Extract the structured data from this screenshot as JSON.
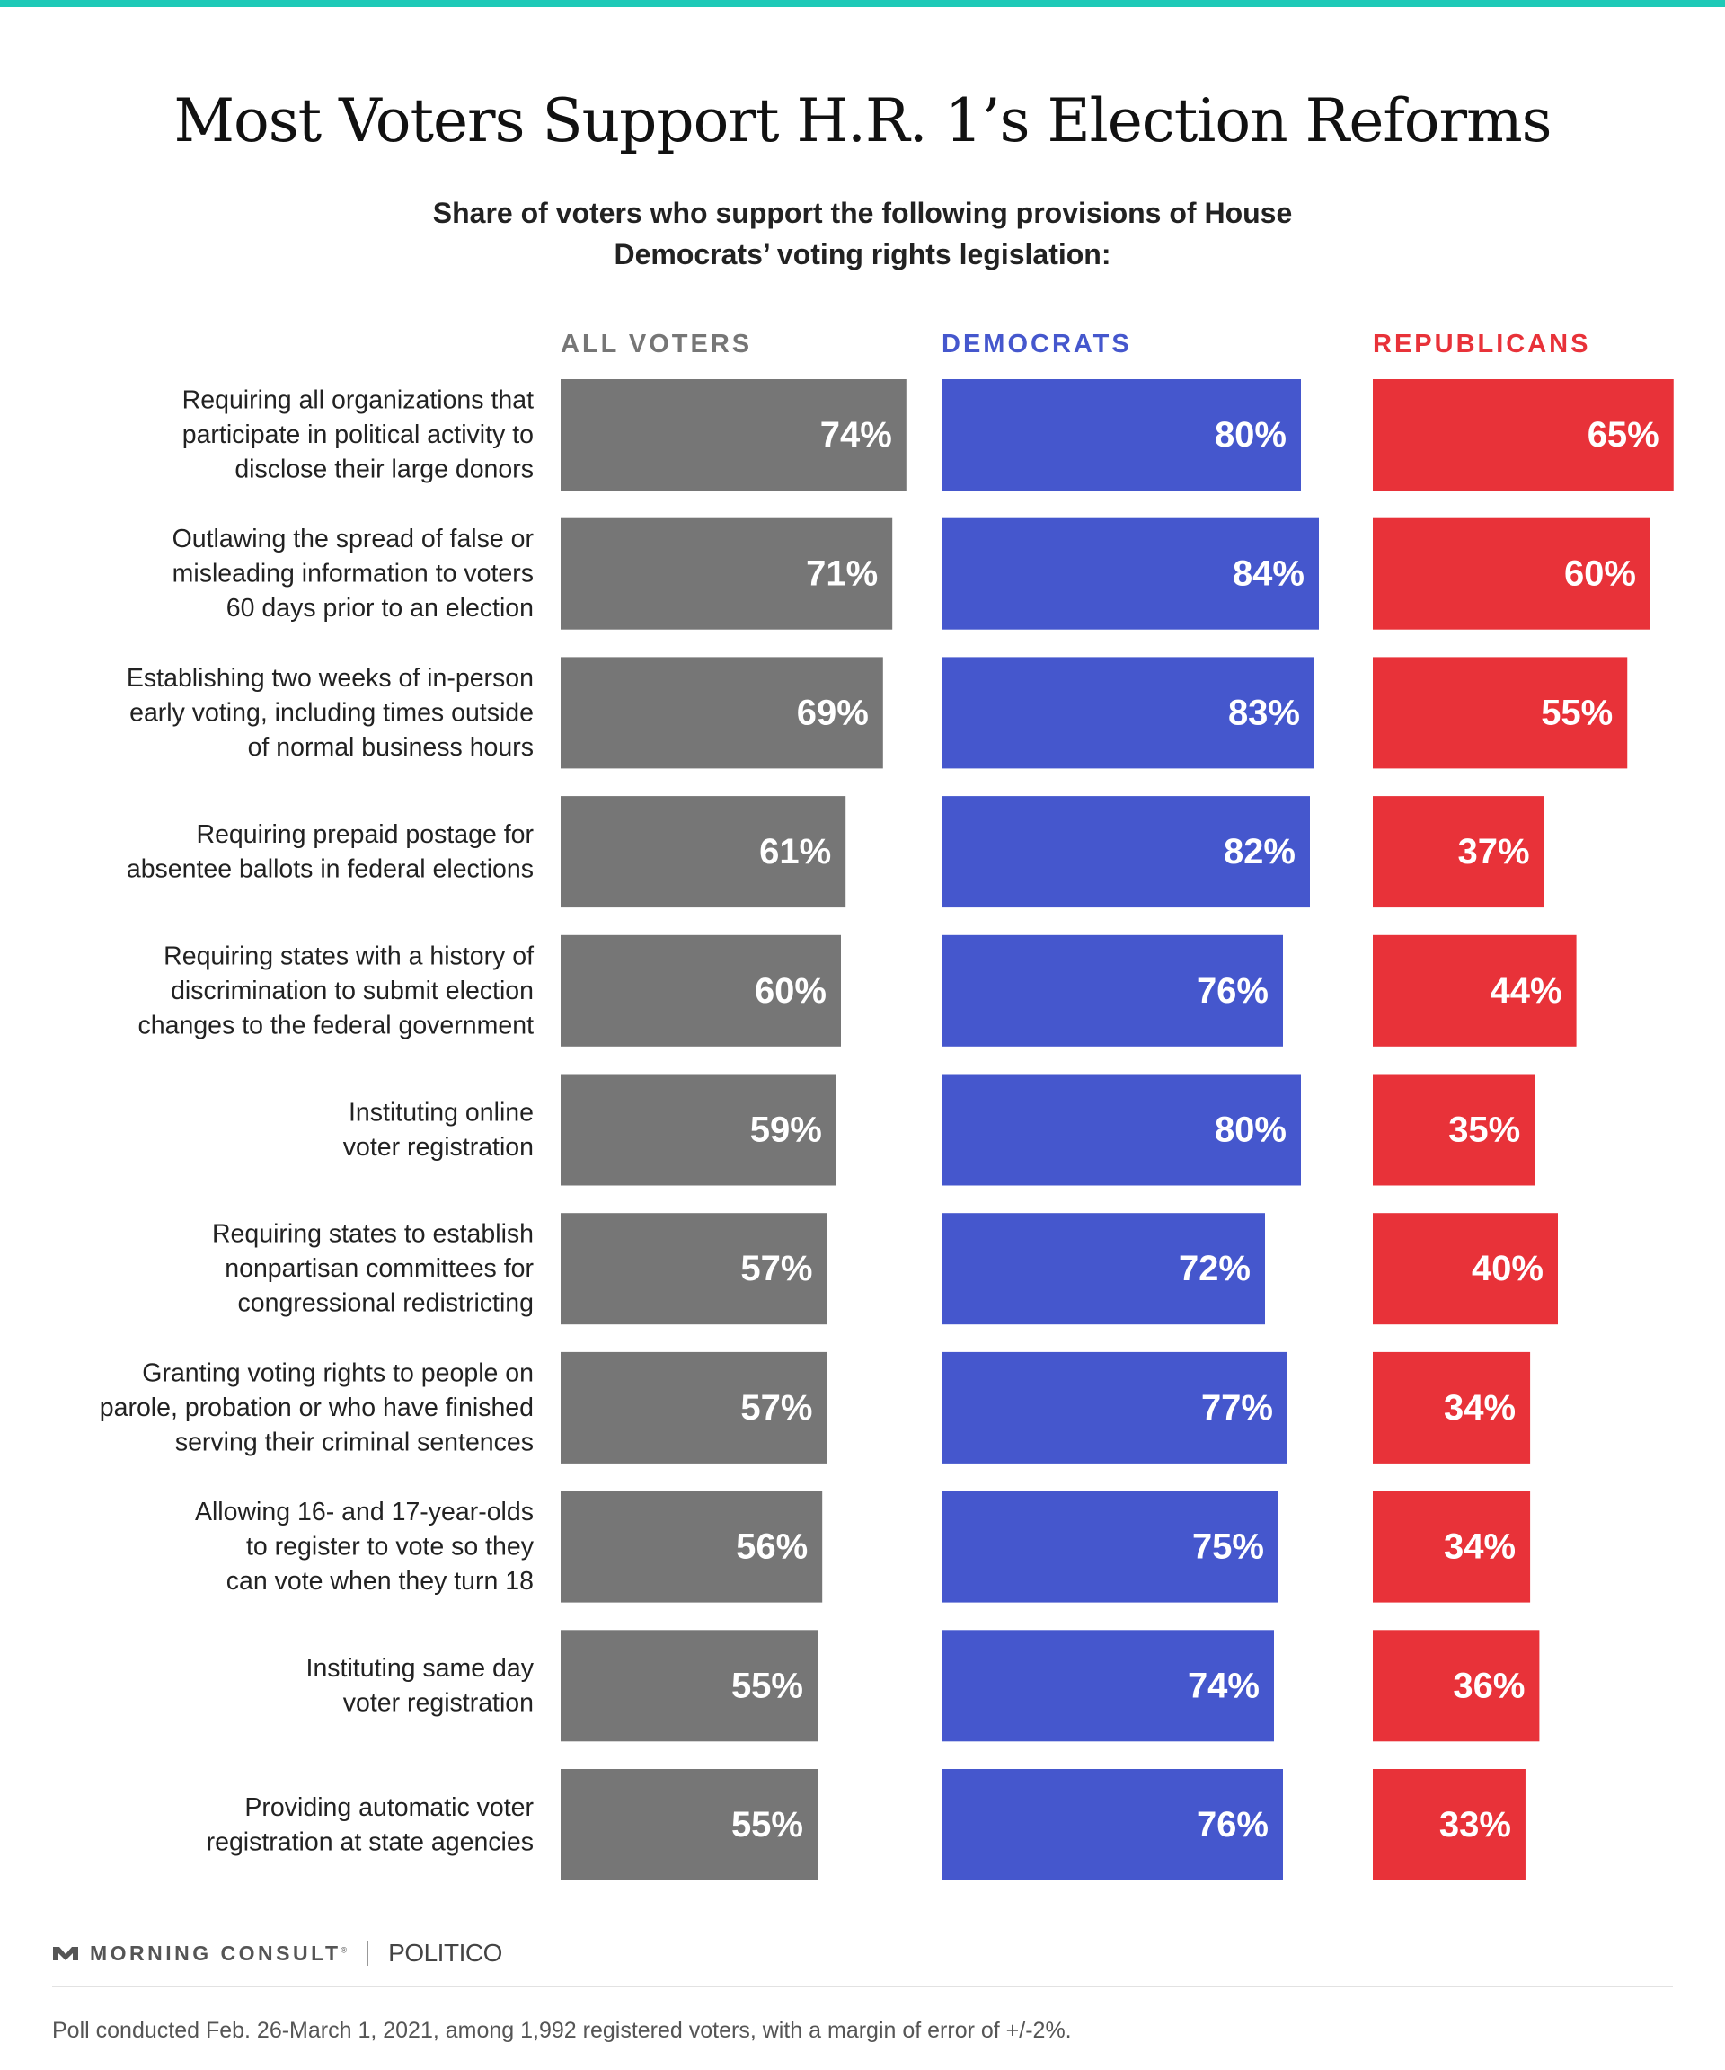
{
  "colors": {
    "top_rule": "#1ec9b7",
    "all": "#767676",
    "dem": "#4557cd",
    "rep": "#e83239"
  },
  "title": "Most Voters Support H.R. 1’s Election Reforms",
  "subtitle": "Share of voters who support the following provisions of House Democrats’ voting rights legislation:",
  "chart_data": {
    "type": "bar",
    "orientation": "horizontal",
    "title": "Most Voters Support H.R. 1’s Election Reforms",
    "subtitle": "Share of voters who support the following provisions of House Democrats’ voting rights legislation:",
    "value_suffix": "%",
    "categories": [
      [
        "Requiring all organizations that",
        "participate in political activity to",
        "disclose their large donors"
      ],
      [
        "Outlawing the spread of false or",
        "misleading information to voters",
        "60 days prior to an election"
      ],
      [
        "Establishing two weeks of in-person",
        "early voting, including times outside",
        "of normal business hours"
      ],
      [
        "Requiring prepaid postage for",
        "absentee ballots in federal elections"
      ],
      [
        "Requiring states with a history of",
        "discrimination to submit election",
        "changes to the federal government"
      ],
      [
        "Instituting online",
        "voter registration"
      ],
      [
        "Requiring states to establish",
        "nonpartisan committees for",
        "congressional redistricting"
      ],
      [
        "Granting voting rights to people on",
        "parole, probation or who have finished",
        "serving their criminal sentences"
      ],
      [
        "Allowing 16- and 17-year-olds",
        "to register to vote so they",
        "can vote when they turn 18"
      ],
      [
        "Instituting same day",
        "voter registration"
      ],
      [
        "Providing automatic voter",
        "registration at state agencies"
      ]
    ],
    "series": [
      {
        "name": "ALL VOTERS",
        "color": "#767676",
        "values": [
          74,
          71,
          69,
          61,
          60,
          59,
          57,
          57,
          56,
          55,
          55
        ]
      },
      {
        "name": "DEMOCRATS",
        "color": "#4557cd",
        "values": [
          80,
          84,
          83,
          82,
          76,
          80,
          72,
          77,
          75,
          74,
          76
        ]
      },
      {
        "name": "REPUBLICANS",
        "color": "#e83239",
        "values": [
          65,
          60,
          55,
          37,
          44,
          35,
          40,
          34,
          34,
          36,
          33
        ]
      }
    ]
  },
  "footer": {
    "logo_name": "MORNING CONSULT",
    "logo_mark": "®",
    "partner": "POLITICO",
    "note": "Poll conducted Feb. 26-March 1, 2021, among 1,992 registered voters, with a margin of error of +/-2%."
  }
}
